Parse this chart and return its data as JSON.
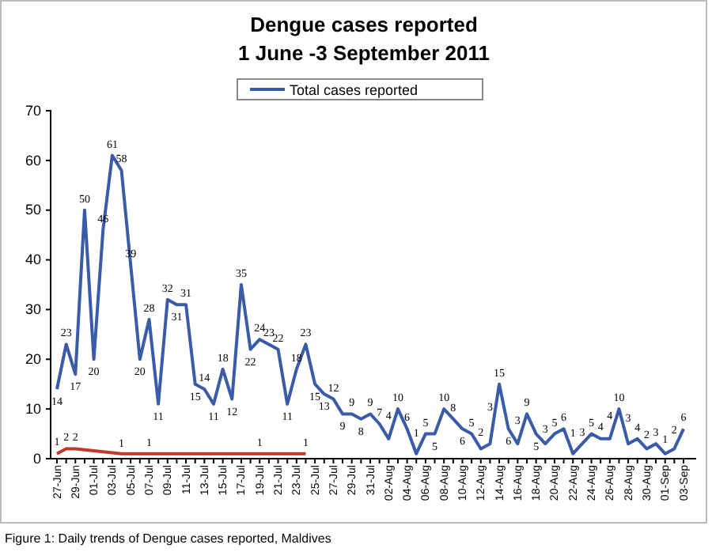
{
  "chart_data": {
    "type": "line",
    "title": "Dengue cases reported",
    "subtitle": "1 June -3 September  2011",
    "categories": [
      "27-Jun",
      null,
      "29-Jun",
      null,
      "01-Jul",
      null,
      "03-Jul",
      null,
      "05-Jul",
      null,
      "07-Jul",
      null,
      "09-Jul",
      null,
      "11-Jul",
      null,
      "13-Jul",
      null,
      "15-Jul",
      null,
      "17-Jul",
      null,
      "19-Jul",
      null,
      "21-Jul",
      null,
      "23-Jul",
      null,
      "25-Jul",
      null,
      "27-Jul",
      null,
      "29-Jul",
      null,
      "31-Jul",
      null,
      "02-Aug",
      null,
      "04-Aug",
      null,
      "06-Aug",
      null,
      "08-Aug",
      null,
      "10-Aug",
      null,
      "12-Aug",
      null,
      "14-Aug",
      null,
      "16-Aug",
      null,
      "18-Aug",
      null,
      "20-Aug",
      null,
      "22-Aug",
      null,
      "24-Aug",
      null,
      "26-Aug",
      null,
      "28-Aug",
      null,
      "30-Aug",
      null,
      "01-Sep",
      null,
      "03-Sep"
    ],
    "series": [
      {
        "name": "Total cases reported",
        "color": "#3a5ba8",
        "values": [
          14,
          23,
          17,
          50,
          20,
          46,
          61,
          58,
          39,
          20,
          28,
          11,
          32,
          31,
          31,
          15,
          14,
          11,
          18,
          12,
          35,
          22,
          24,
          23,
          22,
          11,
          18,
          23,
          15,
          13,
          12,
          9,
          9,
          8,
          9,
          7,
          4,
          10,
          6,
          1,
          5,
          5,
          10,
          8,
          6,
          5,
          2,
          3,
          15,
          6,
          3,
          9,
          5,
          3,
          5,
          6,
          1,
          3,
          5,
          4,
          4,
          10,
          3,
          4,
          2,
          3,
          1,
          2,
          6
        ],
        "value_labels": [
          "14",
          "23",
          "17",
          "50",
          "20",
          "46",
          "61",
          "58",
          "39",
          "20",
          "28",
          "11",
          "32",
          "31",
          "31",
          "15",
          "14",
          "11",
          "18",
          "12",
          "35",
          "22",
          "24",
          "23",
          "22",
          "11",
          "18",
          "23",
          "15",
          "13",
          "12",
          "9",
          "9",
          "8",
          "9",
          "7",
          "4",
          "10",
          "6",
          "1",
          "5",
          "5",
          "10",
          "8",
          "6",
          "5",
          "2",
          "3",
          "15",
          "6",
          "3",
          "9",
          "5",
          "3",
          "5",
          "6",
          "1",
          "3",
          "5",
          "4",
          "4",
          "10",
          "3",
          "4",
          "2",
          "3",
          "1",
          "2",
          "6"
        ]
      },
      {
        "color": "#c0392b",
        "values": [
          1,
          2,
          2,
          1.8,
          1.6,
          1.4,
          1.2,
          1,
          1,
          1,
          1,
          1,
          1,
          1,
          1,
          1,
          1,
          1,
          1,
          1,
          1,
          1,
          1,
          1,
          1,
          1,
          1,
          1,
          null,
          null,
          null,
          null,
          null,
          null,
          null,
          null,
          null,
          null,
          null,
          null,
          null,
          null,
          null,
          null,
          null,
          null,
          null,
          null,
          null,
          null,
          null,
          null,
          null,
          null,
          null,
          null,
          null,
          null,
          null,
          null,
          null,
          null,
          null,
          null,
          null,
          null,
          null,
          null,
          null
        ],
        "value_labels": [
          "1",
          "2",
          "2",
          null,
          null,
          null,
          null,
          "1",
          null,
          null,
          "1",
          null,
          null,
          null,
          null,
          null,
          null,
          null,
          null,
          null,
          null,
          null,
          "1",
          null,
          null,
          null,
          null,
          "1",
          null,
          null,
          null,
          null,
          null,
          null,
          null,
          null,
          null,
          null,
          null,
          null,
          null,
          null,
          null,
          null,
          null,
          null,
          null,
          null,
          null,
          null,
          null,
          null,
          null,
          null,
          null,
          null,
          null,
          null,
          null,
          null,
          null,
          null,
          null,
          null,
          null,
          null,
          null,
          null,
          null
        ]
      }
    ],
    "ylim": [
      0,
      70
    ],
    "yticks": [
      0,
      10,
      20,
      30,
      40,
      50,
      60,
      70
    ],
    "legend": "top",
    "line_style": "solid",
    "marker": "none",
    "annotations": [
      "Figure 1: Daily trends of Dengue cases reported, Maldives"
    ]
  }
}
